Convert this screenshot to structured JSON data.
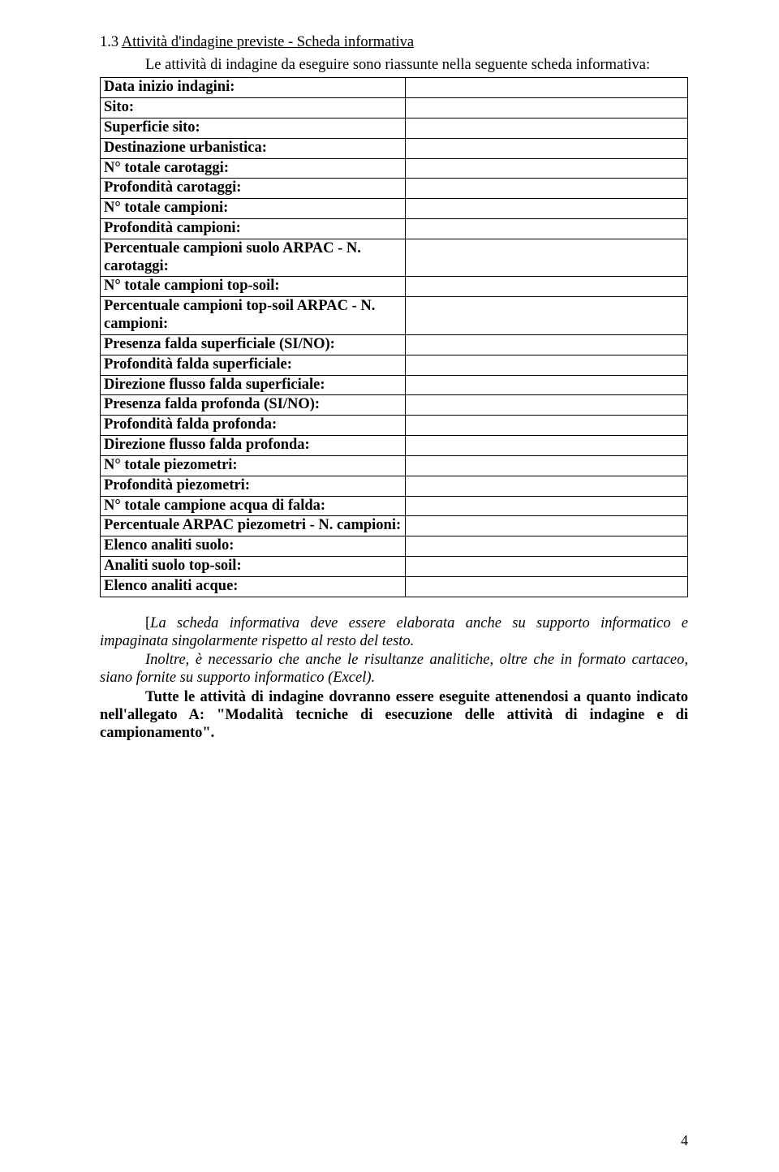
{
  "heading_prefix": "1.3 ",
  "heading_underlined": "Attività d'indagine previste - Scheda informativa",
  "intro": "Le attività di indagine da eseguire sono riassunte nella seguente scheda informativa:",
  "rows": [
    "Data inizio indagini:",
    "Sito:",
    "Superficie sito:",
    "Destinazione urbanistica:",
    "N° totale carotaggi:",
    "Profondità carotaggi:",
    "N° totale campioni:",
    "Profondità campioni:",
    "Percentuale campioni suolo ARPAC - N. carotaggi:",
    "N° totale campioni top-soil:",
    "Percentuale campioni top-soil ARPAC - N. campioni:",
    "Presenza falda superficiale (SI/NO):",
    "Profondità falda superficiale:",
    "Direzione flusso falda superficiale:",
    "Presenza falda profonda (SI/NO):",
    "Profondità falda profonda:",
    "Direzione flusso falda profonda:",
    "N° totale piezometri:",
    "Profondità piezometri:",
    "N° totale campione acqua di falda:",
    "Percentuale ARPAC piezometri - N. campioni:",
    "Elenco analiti suolo:",
    "Analiti suolo top-soil:",
    "Elenco analiti acque:"
  ],
  "para1_a": "[",
  "para1_b": "La scheda informativa deve essere elaborata anche su supporto informatico e impaginata singolarmente rispetto al resto del testo.",
  "para2": "Inoltre, è necessario che anche le risultanze analitiche, oltre che in formato cartaceo, siano fornite su supporto informatico (Excel).",
  "para3": "Tutte le attività di indagine dovranno essere eseguite attenendosi a quanto indicato nell'allegato A: \"Modalità tecniche di esecuzione delle attività di indagine e di campionamento\".",
  "page_number": "4"
}
